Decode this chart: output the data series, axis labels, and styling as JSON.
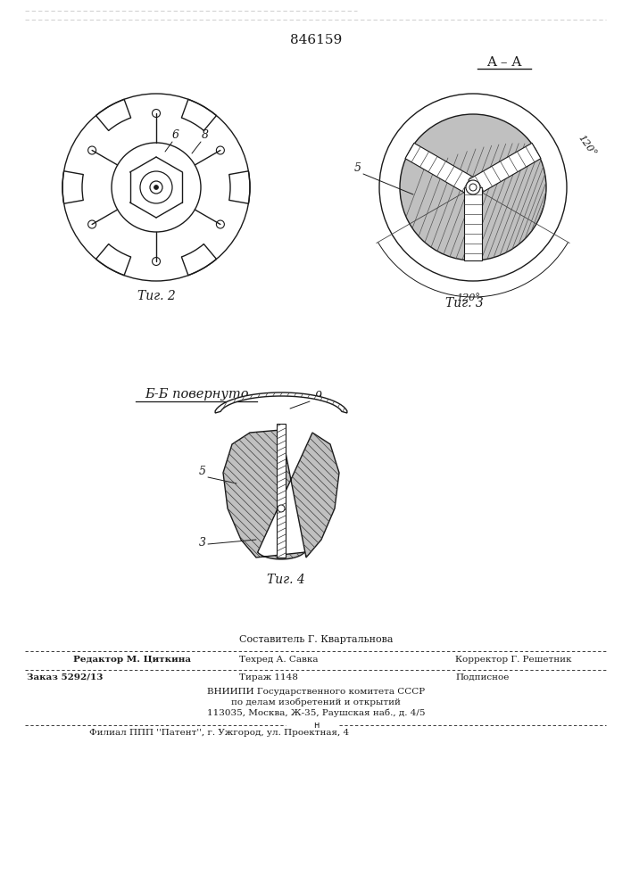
{
  "title_number": "846159",
  "fig2_caption": "Τиг. 2",
  "fig3_caption": "Τиг. 3",
  "fig4_caption": "Τиг. 4",
  "section_label_aa": "A – A",
  "section_label_bb": "Б-Б повернуто",
  "footer_line1": "Составитель Г. Квартальнова",
  "footer_line2_left": "Редактор М. Циткина",
  "footer_line2_mid": "Техред А. Савка",
  "footer_line2_right": "Корректор Г. Решетник",
  "footer_line3_left": "Заказ 5292/13",
  "footer_line3_mid": "Тираж 1148",
  "footer_line3_right": "Подписное",
  "footer_line4": "ВНИИПИ Государственного комитета СССР",
  "footer_line5": "по делам изобретений и открытий",
  "footer_line6": "113035, Москва, Ж-35, Раушская наб., д. 4/5",
  "footer_line7": "Филиал ППП ''Патент'', г. Ужгород, ул. Проектная, 4",
  "bg_color": "#ffffff",
  "line_color": "#1a1a1a"
}
